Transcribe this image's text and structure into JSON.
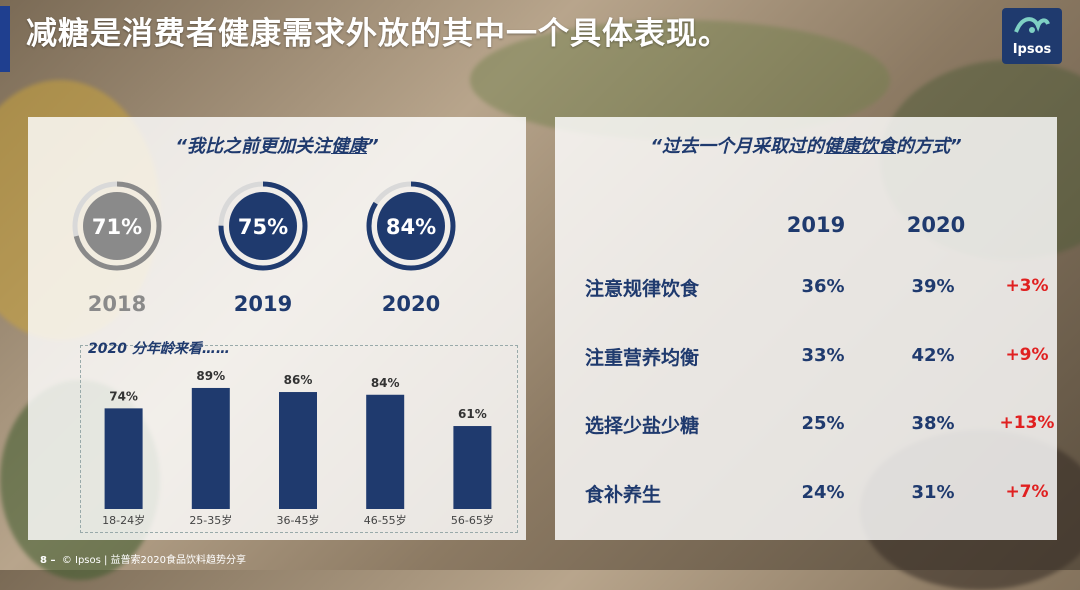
{
  "title": "减糖是消费者健康需求外放的其中一个具体表现。",
  "logo": {
    "text": "Ipsos"
  },
  "left_panel": {
    "quote_prefix": "“我比之前更加关注",
    "quote_emphasis": "健康",
    "quote_suffix": "”",
    "rings": [
      {
        "year": "2018",
        "percent_label": "71%",
        "value": 71,
        "color": "#8a8a8a"
      },
      {
        "year": "2019",
        "percent_label": "75%",
        "value": 75,
        "color": "#1f3a6e"
      },
      {
        "year": "2020",
        "percent_label": "84%",
        "value": 84,
        "color": "#1f3a6e"
      }
    ],
    "age_title": "2020 分年龄来看……"
  },
  "right_panel": {
    "quote_prefix": "“过去一个月采取过的",
    "quote_emphasis": "健康饮食",
    "quote_suffix": "的方式”",
    "columns": [
      "2019",
      "2020"
    ],
    "rows": [
      {
        "label": "注意规律饮食",
        "v2019": "36%",
        "v2020": "39%",
        "delta": "+3%"
      },
      {
        "label": "注重营养均衡",
        "v2019": "33%",
        "v2020": "42%",
        "delta": "+9%"
      },
      {
        "label": "选择少盐少糖",
        "v2019": "25%",
        "v2020": "38%",
        "delta": "+13%"
      },
      {
        "label": "食补养生",
        "v2019": "24%",
        "v2020": "31%",
        "delta": "+7%"
      }
    ]
  },
  "footer": {
    "page": "8 –",
    "text": "© Ipsos | 益普索2020食品饮料趋势分享"
  },
  "colors": {
    "navy": "#1f3a6e",
    "grey": "#8a8a8a",
    "delta_red": "#e02020"
  },
  "chart_data": {
    "type": "bar",
    "title": "2020 分年龄来看……",
    "categories": [
      "18-24岁",
      "25-35岁",
      "36-45岁",
      "46-55岁",
      "56-65岁"
    ],
    "values": [
      74,
      89,
      86,
      84,
      61
    ],
    "value_labels": [
      "74%",
      "89%",
      "86%",
      "84%",
      "61%"
    ],
    "xlabel": "",
    "ylabel": "",
    "ylim": [
      0,
      100
    ],
    "grid": false,
    "bar_color": "#1f3a6e"
  }
}
